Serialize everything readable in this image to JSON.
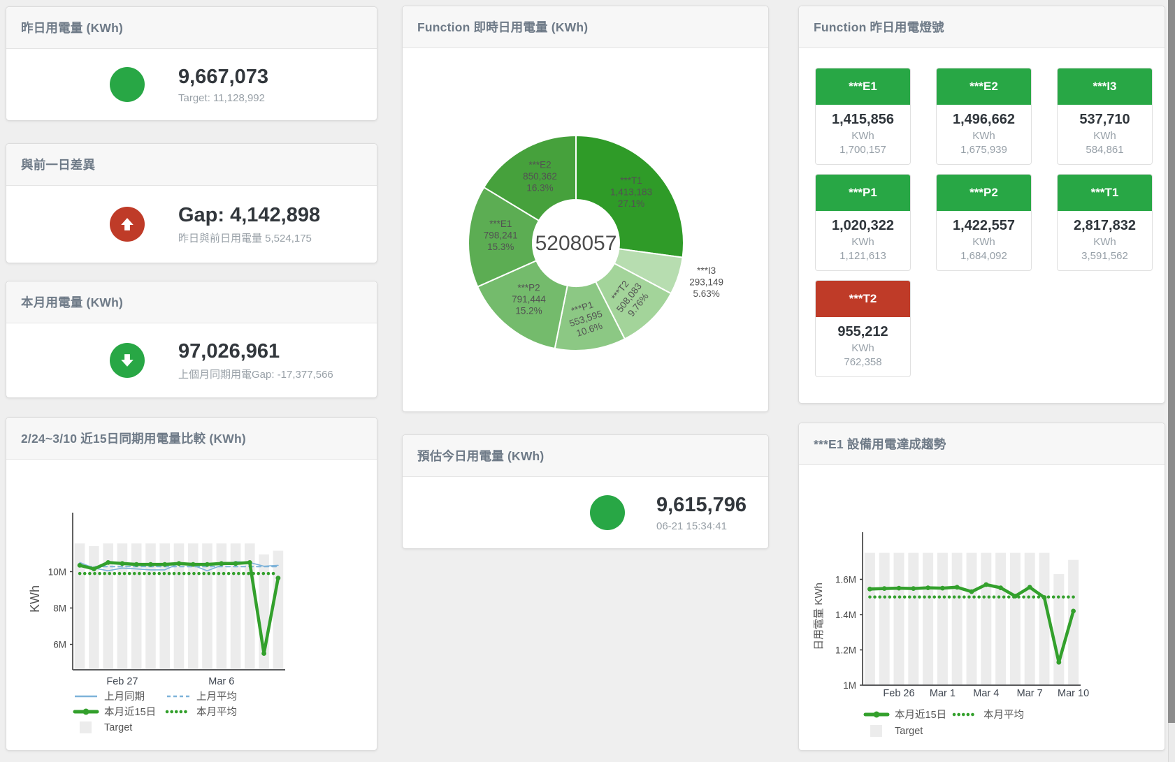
{
  "panels": {
    "yesterday": {
      "title": "昨日用電量 (KWh)",
      "value": "9,667,073",
      "subtitle": "Target: 11,128,992",
      "indicator": "green-circle",
      "indicator_color": "#28a745"
    },
    "day_gap": {
      "title": "與前一日差異",
      "value": "Gap: 4,142,898",
      "subtitle": "昨日與前日用電量 5,524,175",
      "indicator": "red-up-arrow",
      "indicator_color": "#bf3b28"
    },
    "month": {
      "title": "本月用電量 (KWh)",
      "value": "97,026,961",
      "subtitle": "上個月同期用電Gap: -17,377,566",
      "indicator": "green-down-arrow",
      "indicator_color": "#28a745"
    },
    "realtime": {
      "title": "Function 即時日用電量 (KWh)"
    },
    "lights": {
      "title": "Function 昨日用電燈號",
      "unit": "KWh",
      "cards": [
        {
          "name": "***E1",
          "value": "1,415,856",
          "target": "1,700,157",
          "color": "#28a745"
        },
        {
          "name": "***E2",
          "value": "1,496,662",
          "target": "1,675,939",
          "color": "#28a745"
        },
        {
          "name": "***I3",
          "value": "537,710",
          "target": "584,861",
          "color": "#28a745"
        },
        {
          "name": "***P1",
          "value": "1,020,322",
          "target": "1,121,613",
          "color": "#28a745"
        },
        {
          "name": "***P2",
          "value": "1,422,557",
          "target": "1,684,092",
          "color": "#28a745"
        },
        {
          "name": "***T1",
          "value": "2,817,832",
          "target": "3,591,562",
          "color": "#28a745"
        },
        {
          "name": "***T2",
          "value": "955,212",
          "target": "762,358",
          "color": "#bf3b28"
        }
      ]
    },
    "compare": {
      "title": "2/24~3/10 近15日同期用電量比較 (KWh)"
    },
    "estimate": {
      "title": "預估今日用電量 (KWh)",
      "value": "9,615,796",
      "subtitle": "06-21 15:34:41",
      "indicator": "green-circle",
      "indicator_color": "#28a745"
    },
    "trend": {
      "title": "***E1 設備用電達成趨勢"
    }
  },
  "chart_data": [
    {
      "id": "realtime-donut",
      "type": "pie",
      "title": "Function 即時日用電量 (KWh)",
      "center_label": "5208057",
      "legend_position": "none",
      "slices": [
        {
          "label": "***T1",
          "value": 1413183,
          "value_label": "1,413,183",
          "pct": "27.1%",
          "color": "#2f9b28",
          "label_r": 105,
          "rotate": 0
        },
        {
          "label": "***I3",
          "value": 293149,
          "value_label": "293,149",
          "pct": "5.63%",
          "color": "#b7ddb0",
          "label_r": 196,
          "rotate": 0
        },
        {
          "label": "***T2",
          "value": 508083,
          "value_label": "508,083",
          "pct": "9.76%",
          "color": "#a3d49a",
          "label_r": 113,
          "rotate": -52
        },
        {
          "label": "***P1",
          "value": 553595,
          "value_label": "553,595",
          "pct": "10.6%",
          "color": "#8cc884",
          "label_r": 113,
          "rotate": -18
        },
        {
          "label": "***P2",
          "value": 791444,
          "value_label": "791,444",
          "pct": "15.2%",
          "color": "#74bb6c",
          "label_r": 108,
          "rotate": 0
        },
        {
          "label": "***E1",
          "value": 798241,
          "value_label": "798,241",
          "pct": "15.3%",
          "color": "#5cad53",
          "label_r": 108,
          "rotate": 0
        },
        {
          "label": "***E2",
          "value": 850362,
          "value_label": "850,362",
          "pct": "16.3%",
          "color": "#46a13c",
          "label_r": 105,
          "rotate": 0
        }
      ]
    },
    {
      "id": "compare-15d",
      "type": "line",
      "title": "2/24~3/10 近15日同期用電量比較 (KWh)",
      "ylabel": "KWh",
      "ylim": [
        4600000,
        12400000
      ],
      "grid": false,
      "yticks": [
        {
          "v": 6000000,
          "label": "6M"
        },
        {
          "v": 8000000,
          "label": "8M"
        },
        {
          "v": 10000000,
          "label": "10M"
        }
      ],
      "xticks": [
        {
          "i": 3,
          "label": "Feb 27"
        },
        {
          "i": 10,
          "label": "Mar 6"
        }
      ],
      "bars": {
        "name": "Target",
        "color": "#ececec",
        "values": [
          11550000,
          11400000,
          11550000,
          11550000,
          11550000,
          11550000,
          11550000,
          11550000,
          11550000,
          11550000,
          11550000,
          11550000,
          11550000,
          10950000,
          11150000
        ]
      },
      "series": [
        {
          "name": "上月平均",
          "color": "#7eb3d9",
          "width": 2,
          "style": "dash",
          "values": [
            10280000,
            10280000,
            10280000,
            10280000,
            10280000,
            10280000,
            10280000,
            10280000,
            10280000,
            10280000,
            10280000,
            10280000,
            10280000,
            10280000,
            10280000
          ]
        },
        {
          "name": "本月平均",
          "color": "#33a02c",
          "width": 4.5,
          "style": "dots",
          "values": [
            9900000,
            9900000,
            9900000,
            9900000,
            9900000,
            9900000,
            9900000,
            9900000,
            9900000,
            9900000,
            9900000,
            9900000,
            9900000,
            9900000,
            9900000
          ]
        },
        {
          "name": "上月同期",
          "color": "#7eb3d9",
          "width": 1.6,
          "style": "line",
          "values": [
            10500000,
            10200000,
            10050000,
            10200000,
            10150000,
            10100000,
            10100000,
            10450000,
            10350000,
            10050000,
            10350000,
            10550000,
            10500000,
            10300000,
            10350000
          ]
        },
        {
          "name": "本月近15日",
          "color": "#33a02c",
          "width": 4.5,
          "style": "thick",
          "markers": true,
          "values": [
            10350000,
            10150000,
            10500000,
            10450000,
            10400000,
            10400000,
            10400000,
            10450000,
            10400000,
            10400000,
            10450000,
            10450000,
            10500000,
            5500000,
            9650000
          ]
        }
      ],
      "legend_rows": [
        [
          {
            "type": "line",
            "color": "#7eb3d9",
            "label": "上月同期"
          },
          {
            "type": "dash",
            "color": "#7eb3d9",
            "label": "上月平均"
          }
        ],
        [
          {
            "type": "thick",
            "color": "#33a02c",
            "label": "本月近15日"
          },
          {
            "type": "dots",
            "color": "#33a02c",
            "label": "本月平均"
          }
        ],
        [
          {
            "type": "square",
            "color": "#ececec",
            "label": "Target"
          }
        ]
      ]
    },
    {
      "id": "e1-trend",
      "type": "line",
      "title": "***E1 設備用電達成趨勢",
      "ylabel": "日用電量 KWh",
      "ylim": [
        1000000,
        1780000
      ],
      "grid": false,
      "yticks": [
        {
          "v": 1000000,
          "label": "1M"
        },
        {
          "v": 1200000,
          "label": "1.2M"
        },
        {
          "v": 1400000,
          "label": "1.4M"
        },
        {
          "v": 1600000,
          "label": "1.6M"
        }
      ],
      "xticks": [
        {
          "i": 2,
          "label": "Feb 26"
        },
        {
          "i": 5,
          "label": "Mar 1"
        },
        {
          "i": 8,
          "label": "Mar 4"
        },
        {
          "i": 11,
          "label": "Mar 7"
        },
        {
          "i": 14,
          "label": "Mar 10"
        }
      ],
      "bars": {
        "name": "Target",
        "color": "#ececec",
        "values": [
          1750000,
          1750000,
          1750000,
          1750000,
          1750000,
          1750000,
          1750000,
          1750000,
          1750000,
          1750000,
          1750000,
          1750000,
          1750000,
          1630000,
          1710000
        ]
      },
      "series": [
        {
          "name": "本月平均",
          "color": "#33a02c",
          "width": 4.5,
          "style": "dots",
          "values": [
            1500000,
            1500000,
            1500000,
            1500000,
            1500000,
            1500000,
            1500000,
            1500000,
            1500000,
            1500000,
            1500000,
            1500000,
            1500000,
            1500000,
            1500000
          ]
        },
        {
          "name": "本月近15日",
          "color": "#33a02c",
          "width": 4.5,
          "style": "thick",
          "markers": true,
          "values": [
            1545000,
            1548000,
            1550000,
            1548000,
            1552000,
            1550000,
            1555000,
            1530000,
            1570000,
            1552000,
            1505000,
            1555000,
            1497000,
            1130000,
            1420000
          ]
        }
      ],
      "legend_rows": [
        [
          {
            "type": "thick",
            "color": "#33a02c",
            "label": "本月近15日"
          },
          {
            "type": "dots",
            "color": "#33a02c",
            "label": "本月平均"
          }
        ],
        [
          {
            "type": "square",
            "color": "#ececec",
            "label": "Target"
          }
        ]
      ]
    }
  ]
}
